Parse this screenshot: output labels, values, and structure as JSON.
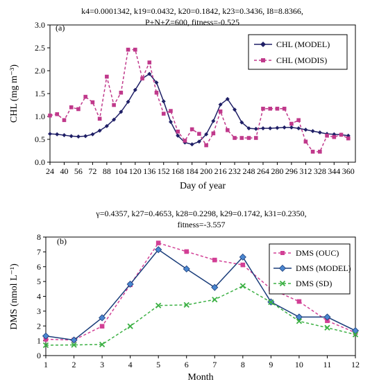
{
  "chart_data": [
    {
      "type": "line",
      "panel_label": "(a)",
      "params_text": [
        "k4=0.0001342, k19=0.0432, k20=0.1842, k23=0.3436, I8=8.8366,",
        "P+N+Z=600, fitness=-0.525"
      ],
      "xlabel": "Day of year",
      "ylabel": "CHL (mg m⁻³)",
      "xlim": [
        24,
        368
      ],
      "ylim": [
        0,
        3.0
      ],
      "xticks": [
        24,
        40,
        56,
        72,
        88,
        104,
        120,
        136,
        152,
        168,
        184,
        200,
        216,
        232,
        248,
        264,
        280,
        296,
        312,
        328,
        344,
        360
      ],
      "yticks": [
        "0.0",
        "0.5",
        "1.0",
        "1.5",
        "2.0",
        "2.5",
        "3.0"
      ],
      "legend_position": "top-right",
      "series": [
        {
          "name": "CHL (MODEL)",
          "color": "#1f1f66",
          "style": "solid",
          "marker": "diamond",
          "x": [
            24,
            32,
            40,
            48,
            56,
            64,
            72,
            80,
            88,
            96,
            104,
            112,
            120,
            128,
            136,
            144,
            152,
            160,
            168,
            176,
            184,
            192,
            200,
            208,
            216,
            224,
            232,
            240,
            248,
            256,
            264,
            272,
            280,
            288,
            296,
            304,
            312,
            320,
            328,
            336,
            344,
            352,
            360
          ],
          "values": [
            0.62,
            0.61,
            0.59,
            0.57,
            0.56,
            0.57,
            0.61,
            0.69,
            0.79,
            0.93,
            1.1,
            1.32,
            1.58,
            1.83,
            1.93,
            1.74,
            1.33,
            0.88,
            0.58,
            0.43,
            0.39,
            0.45,
            0.61,
            0.9,
            1.26,
            1.38,
            1.15,
            0.87,
            0.74,
            0.73,
            0.74,
            0.74,
            0.75,
            0.76,
            0.76,
            0.74,
            0.71,
            0.68,
            0.65,
            0.62,
            0.61,
            0.6,
            0.58
          ]
        },
        {
          "name": "CHL (MODIS)",
          "color": "#c0398b",
          "style": "dashed",
          "marker": "square",
          "x": [
            24,
            32,
            40,
            48,
            56,
            64,
            72,
            80,
            88,
            96,
            104,
            112,
            120,
            128,
            136,
            144,
            152,
            160,
            168,
            176,
            184,
            192,
            200,
            208,
            216,
            224,
            232,
            240,
            248,
            256,
            264,
            272,
            280,
            288,
            296,
            304,
            312,
            320,
            328,
            336,
            344,
            352,
            360
          ],
          "values": [
            1.02,
            1.05,
            0.92,
            1.2,
            1.16,
            1.43,
            1.31,
            0.95,
            1.87,
            1.25,
            1.52,
            2.46,
            2.46,
            1.83,
            2.18,
            1.52,
            1.06,
            1.12,
            0.67,
            0.47,
            0.72,
            0.62,
            0.37,
            0.63,
            1.11,
            0.7,
            0.53,
            0.53,
            0.53,
            0.53,
            1.17,
            1.17,
            1.17,
            1.17,
            0.84,
            0.92,
            0.45,
            0.23,
            0.23,
            0.58,
            0.55,
            0.6,
            0.52
          ]
        }
      ]
    },
    {
      "type": "line",
      "panel_label": "(b)",
      "params_text": [
        "γ=0.4357, k27=0.4653, k28=0.2298, k29=0.1742, k31=0.2350,",
        "fitness=-3.557"
      ],
      "xlabel": "Month",
      "ylabel": "DMS (nmol L⁻¹)",
      "xlim": [
        1,
        12
      ],
      "ylim": [
        0,
        8
      ],
      "xticks": [
        1,
        2,
        3,
        4,
        5,
        6,
        7,
        8,
        9,
        10,
        11,
        12
      ],
      "yticks": [
        "0",
        "1",
        "2",
        "3",
        "4",
        "5",
        "6",
        "7",
        "8"
      ],
      "legend_position": "top-right",
      "series": [
        {
          "name": "DMS (OUC)",
          "color": "#d23f95",
          "style": "dashed",
          "marker": "square",
          "x": [
            1,
            2,
            3,
            4,
            5,
            6,
            7,
            8,
            9,
            10,
            11,
            12
          ],
          "values": [
            1.1,
            1.05,
            1.98,
            4.78,
            7.6,
            7.02,
            6.45,
            6.12,
            4.5,
            3.65,
            2.35,
            1.55
          ]
        },
        {
          "name": "DMS (MODEL)",
          "color": "#1a3d7a",
          "style": "solid",
          "marker": "diamond",
          "x": [
            1,
            2,
            3,
            4,
            5,
            6,
            7,
            8,
            9,
            10,
            11,
            12
          ],
          "values": [
            1.32,
            1.05,
            2.55,
            4.82,
            7.15,
            5.85,
            4.6,
            6.65,
            3.62,
            2.6,
            2.6,
            1.68
          ]
        },
        {
          "name": "DMS (SD)",
          "color": "#3bb043",
          "style": "dashed",
          "marker": "x",
          "x": [
            1,
            2,
            3,
            4,
            5,
            6,
            7,
            8,
            9,
            10,
            11,
            12
          ],
          "values": [
            0.7,
            0.72,
            0.75,
            1.98,
            3.38,
            3.42,
            3.78,
            4.7,
            3.6,
            2.32,
            1.88,
            1.42
          ]
        }
      ]
    }
  ]
}
